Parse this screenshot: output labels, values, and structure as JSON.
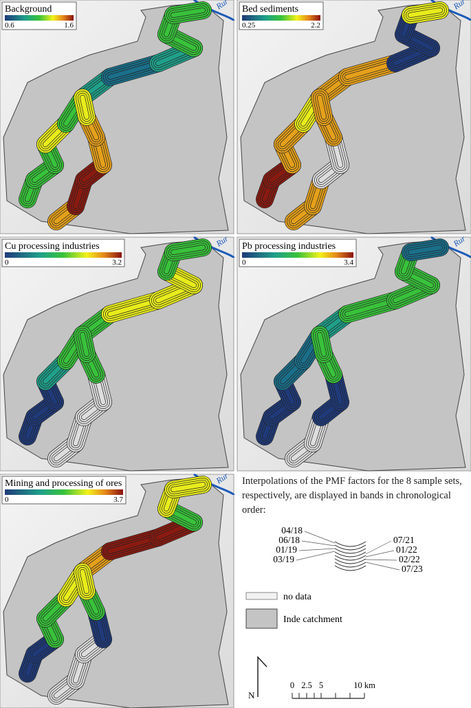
{
  "panels": [
    {
      "title": "Background",
      "min": 0.6,
      "max": 1.6,
      "river": "Rur"
    },
    {
      "title": "Bed sediments",
      "min": 0.25,
      "max": 2.2,
      "river": "Rur"
    },
    {
      "title": "Cu processing industries",
      "min": 0,
      "max": 3.2,
      "river": "Rur"
    },
    {
      "title": "Pb processing industries",
      "min": 0,
      "max": 3.4,
      "river": "Rur"
    },
    {
      "title": "Mining and processing of ores",
      "min": 0,
      "max": 3.7,
      "river": "Rur"
    }
  ],
  "legend": {
    "description": "Interpolations of the PMF factors for the 8 sample sets, respectively, are displayed in bands in chronological order:",
    "bands": [
      "04/18",
      "06/18",
      "01/19",
      "03/19",
      "07/21",
      "01/22",
      "02/22",
      "07/23"
    ],
    "no_data": "no data",
    "catchment": "Inde catchment"
  },
  "scale": {
    "ticks": [
      "0",
      "2.5",
      "5",
      "10 km"
    ],
    "north": "N"
  }
}
